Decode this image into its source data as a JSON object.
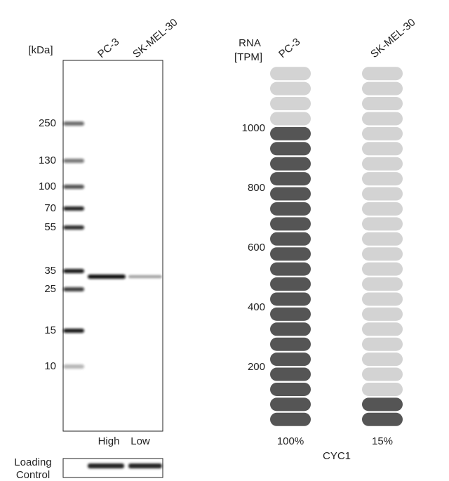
{
  "blot": {
    "unit_label": "[kDa]",
    "markers": [
      "250",
      "130",
      "100",
      "70",
      "55",
      "35",
      "25",
      "15",
      "10"
    ],
    "lanes": [
      "PC-3",
      "SK-MEL-30"
    ],
    "levels": [
      "High",
      "Low"
    ],
    "loading_control": [
      "Loading",
      "Control"
    ]
  },
  "chart_data": {
    "type": "pill",
    "y_label": [
      "RNA",
      "[TPM]"
    ],
    "ylim": [
      0,
      1210
    ],
    "yticks": [
      200,
      400,
      600,
      800,
      1000
    ],
    "segments": 24,
    "filled_color": "#555555",
    "empty_color": "#d3d3d3",
    "categories": [
      "PC-3",
      "SK-MEL-30"
    ],
    "values": [
      1010,
      110
    ],
    "percent": [
      {
        "value": 100,
        "label": "100%"
      },
      {
        "value": 15,
        "label": "15%"
      }
    ],
    "gene": "CYC1"
  }
}
